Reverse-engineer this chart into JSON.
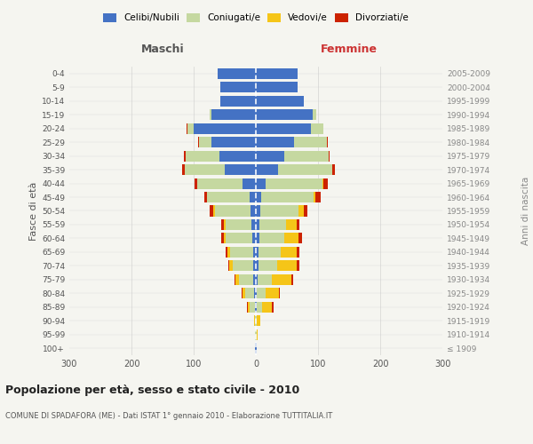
{
  "age_groups": [
    "100+",
    "95-99",
    "90-94",
    "85-89",
    "80-84",
    "75-79",
    "70-74",
    "65-69",
    "60-64",
    "55-59",
    "50-54",
    "45-49",
    "40-44",
    "35-39",
    "30-34",
    "25-29",
    "20-24",
    "15-19",
    "10-14",
    "5-9",
    "0-4"
  ],
  "birth_years": [
    "≤ 1909",
    "1910-1914",
    "1915-1919",
    "1920-1924",
    "1925-1929",
    "1930-1934",
    "1935-1939",
    "1940-1944",
    "1945-1949",
    "1950-1954",
    "1955-1959",
    "1960-1964",
    "1965-1969",
    "1970-1974",
    "1975-1979",
    "1980-1984",
    "1985-1989",
    "1990-1994",
    "1995-1999",
    "2000-2004",
    "2005-2009"
  ],
  "maschi_celibi": [
    1,
    0,
    0,
    2,
    3,
    4,
    5,
    5,
    6,
    7,
    8,
    10,
    22,
    50,
    58,
    72,
    100,
    72,
    57,
    57,
    62
  ],
  "maschi_coniugati": [
    0,
    1,
    2,
    8,
    14,
    23,
    32,
    36,
    42,
    42,
    58,
    68,
    72,
    65,
    55,
    20,
    10,
    2,
    0,
    0,
    0
  ],
  "maschi_vedovi": [
    0,
    0,
    1,
    3,
    5,
    6,
    6,
    5,
    4,
    3,
    2,
    1,
    0,
    0,
    0,
    0,
    0,
    0,
    0,
    0,
    0
  ],
  "maschi_divorziati": [
    0,
    0,
    0,
    1,
    1,
    2,
    2,
    3,
    4,
    4,
    6,
    4,
    4,
    4,
    2,
    1,
    1,
    0,
    0,
    0,
    0
  ],
  "femmine_nubili": [
    1,
    0,
    0,
    2,
    2,
    3,
    4,
    4,
    5,
    5,
    7,
    8,
    15,
    35,
    45,
    62,
    88,
    92,
    77,
    67,
    67
  ],
  "femmine_coniugate": [
    0,
    1,
    2,
    8,
    13,
    22,
    30,
    36,
    40,
    44,
    62,
    85,
    92,
    88,
    72,
    52,
    20,
    5,
    0,
    0,
    0
  ],
  "femmine_vedove": [
    0,
    2,
    5,
    16,
    22,
    32,
    32,
    26,
    24,
    16,
    8,
    3,
    2,
    0,
    0,
    0,
    0,
    0,
    0,
    0,
    0
  ],
  "femmine_divorziate": [
    0,
    0,
    0,
    2,
    2,
    3,
    4,
    4,
    5,
    5,
    6,
    8,
    7,
    4,
    2,
    1,
    1,
    0,
    0,
    0,
    0
  ],
  "colors": {
    "celibi_nubili": "#4472c4",
    "coniugati": "#c5d8a0",
    "vedovi": "#f5c518",
    "divorziati": "#cc2200"
  },
  "xlim": 300,
  "title": "Popolazione per età, sesso e stato civile - 2010",
  "subtitle": "COMUNE DI SPADAFORA (ME) - Dati ISTAT 1° gennaio 2010 - Elaborazione TUTTITALIA.IT",
  "ylabel_left": "Fasce di età",
  "ylabel_right": "Anni di nascita",
  "xlabel_maschi": "Maschi",
  "xlabel_femmine": "Femmine",
  "legend_labels": [
    "Celibi/Nubili",
    "Coniugati/e",
    "Vedovi/e",
    "Divorziati/e"
  ],
  "bg_color": "#f5f5f0",
  "grid_color": "#cccccc"
}
